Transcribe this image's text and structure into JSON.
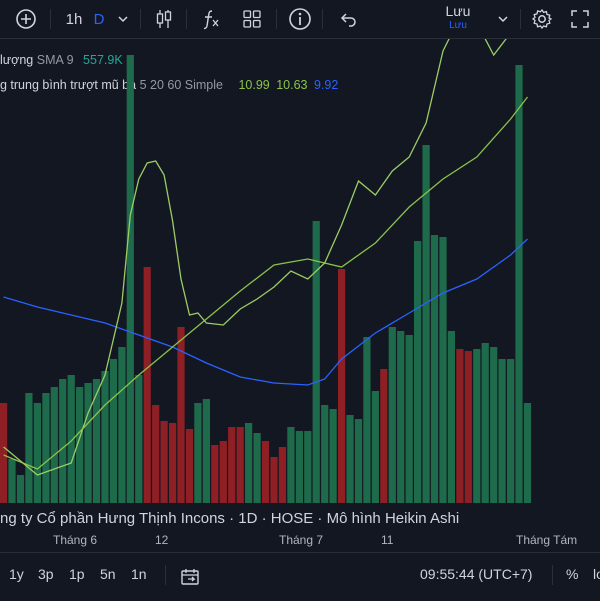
{
  "toolbar": {
    "interval": "1h",
    "interval_flag": "D",
    "save_label": "Lưu",
    "save_sublabel": "Lưu",
    "icons": [
      "plus-circle-icon",
      "chevron-down-icon",
      "candles-icon",
      "fx-icon",
      "layout-grid-icon",
      "info-icon",
      "undo-icon",
      "gear-icon",
      "fullscreen-icon"
    ]
  },
  "legend": {
    "volume": {
      "label": " lượng",
      "params": "SMA 9",
      "value": "557.9K",
      "value_color": "#26a69a"
    },
    "ema": {
      "label": "g trung bình trượt mũ ba",
      "params": "5 20 60 Simple",
      "v1": "10.99",
      "v1_color": "#8bc34a",
      "v2": "10.63",
      "v2_color": "#8bc34a",
      "v3": "9.92",
      "v3_color": "#2962ff"
    }
  },
  "symbol_title": "ng ty Cổ phần Hưng Thịnh Incons · 1D · HOSE · Mô hình Heikin Ashi",
  "time_axis": [
    "Tháng 6",
    "12",
    "Tháng 7",
    "11",
    "Tháng Tám"
  ],
  "bottom_bar": {
    "ranges": [
      "1y",
      "3p",
      "1p",
      "5n",
      "1n"
    ],
    "clock": "09:55:44 (UTC+7)",
    "percent": "%",
    "log": "lo"
  },
  "colors": {
    "up": "#1e6b4c",
    "down": "#8e1f25",
    "ema_fast": "#9ccc65",
    "ema_mid": "#8bc34a",
    "ema_slow": "#2962ff"
  },
  "chart_data": {
    "type": "bar",
    "volume_bars": [
      {
        "d": "down",
        "v": 0.5
      },
      {
        "d": "up",
        "v": 0.22
      },
      {
        "d": "up",
        "v": 0.14
      },
      {
        "d": "up",
        "v": 0.55
      },
      {
        "d": "up",
        "v": 0.5
      },
      {
        "d": "up",
        "v": 0.55
      },
      {
        "d": "up",
        "v": 0.58
      },
      {
        "d": "up",
        "v": 0.62
      },
      {
        "d": "up",
        "v": 0.64
      },
      {
        "d": "up",
        "v": 0.58
      },
      {
        "d": "up",
        "v": 0.6
      },
      {
        "d": "up",
        "v": 0.62
      },
      {
        "d": "up",
        "v": 0.66
      },
      {
        "d": "up",
        "v": 0.72
      },
      {
        "d": "up",
        "v": 0.78
      },
      {
        "d": "up",
        "v": 2.24
      },
      {
        "d": "up",
        "v": 0.64
      },
      {
        "d": "down",
        "v": 1.18
      },
      {
        "d": "down",
        "v": 0.49
      },
      {
        "d": "down",
        "v": 0.41
      },
      {
        "d": "down",
        "v": 0.4
      },
      {
        "d": "down",
        "v": 0.88
      },
      {
        "d": "down",
        "v": 0.37
      },
      {
        "d": "up",
        "v": 0.5
      },
      {
        "d": "up",
        "v": 0.52
      },
      {
        "d": "down",
        "v": 0.29
      },
      {
        "d": "down",
        "v": 0.31
      },
      {
        "d": "down",
        "v": 0.38
      },
      {
        "d": "down",
        "v": 0.38
      },
      {
        "d": "up",
        "v": 0.4
      },
      {
        "d": "up",
        "v": 0.35
      },
      {
        "d": "down",
        "v": 0.31
      },
      {
        "d": "down",
        "v": 0.23
      },
      {
        "d": "down",
        "v": 0.28
      },
      {
        "d": "up",
        "v": 0.38
      },
      {
        "d": "up",
        "v": 0.36
      },
      {
        "d": "up",
        "v": 0.36
      },
      {
        "d": "up",
        "v": 1.41
      },
      {
        "d": "up",
        "v": 0.49
      },
      {
        "d": "up",
        "v": 0.47
      },
      {
        "d": "down",
        "v": 1.17
      },
      {
        "d": "up",
        "v": 0.44
      },
      {
        "d": "up",
        "v": 0.42
      },
      {
        "d": "up",
        "v": 0.83
      },
      {
        "d": "up",
        "v": 0.56
      },
      {
        "d": "down",
        "v": 0.67
      },
      {
        "d": "up",
        "v": 0.88
      },
      {
        "d": "up",
        "v": 0.86
      },
      {
        "d": "up",
        "v": 0.84
      },
      {
        "d": "up",
        "v": 1.31
      },
      {
        "d": "up",
        "v": 1.79
      },
      {
        "d": "up",
        "v": 1.34
      },
      {
        "d": "up",
        "v": 1.33
      },
      {
        "d": "up",
        "v": 0.86
      },
      {
        "d": "down",
        "v": 0.77
      },
      {
        "d": "down",
        "v": 0.76
      },
      {
        "d": "up",
        "v": 0.77
      },
      {
        "d": "up",
        "v": 0.8
      },
      {
        "d": "up",
        "v": 0.78
      },
      {
        "d": "up",
        "v": 0.72
      },
      {
        "d": "up",
        "v": 0.72
      },
      {
        "d": "up",
        "v": 2.19
      },
      {
        "d": "up",
        "v": 0.5
      }
    ],
    "ema_fast": [
      [
        0,
        0.28
      ],
      [
        4,
        0.14
      ],
      [
        8,
        0.2
      ],
      [
        10,
        0.45
      ],
      [
        12,
        0.64
      ],
      [
        14,
        1.0
      ],
      [
        15,
        1.44
      ],
      [
        16,
        1.62
      ],
      [
        17,
        1.7
      ],
      [
        18,
        1.71
      ],
      [
        19,
        1.64
      ],
      [
        20,
        1.41
      ],
      [
        21,
        1.12
      ],
      [
        22,
        0.94
      ],
      [
        23,
        0.95
      ],
      [
        24,
        0.9
      ],
      [
        26,
        0.89
      ],
      [
        28,
        0.97
      ],
      [
        30,
        1.02
      ],
      [
        32,
        1.08
      ],
      [
        34,
        1.16
      ],
      [
        36,
        1.12
      ],
      [
        38,
        1.2
      ],
      [
        40,
        1.39
      ],
      [
        42,
        1.61
      ],
      [
        44,
        1.54
      ],
      [
        46,
        1.66
      ],
      [
        48,
        1.73
      ],
      [
        50,
        1.9
      ],
      [
        52,
        2.26
      ],
      [
        54,
        2.43
      ],
      [
        56,
        2.4
      ],
      [
        58,
        2.24
      ],
      [
        60,
        2.35
      ],
      [
        61,
        2.54
      ]
    ],
    "ema_mid": [
      [
        0,
        0.24
      ],
      [
        4,
        0.17
      ],
      [
        8,
        0.31
      ],
      [
        12,
        0.49
      ],
      [
        16,
        0.64
      ],
      [
        20,
        0.78
      ],
      [
        24,
        0.92
      ],
      [
        28,
        1.06
      ],
      [
        32,
        1.19
      ],
      [
        36,
        1.22
      ],
      [
        40,
        1.18
      ],
      [
        44,
        1.3
      ],
      [
        48,
        1.48
      ],
      [
        52,
        1.62
      ],
      [
        56,
        1.73
      ],
      [
        60,
        1.92
      ],
      [
        62,
        2.03
      ]
    ],
    "ema_slow": [
      [
        0,
        1.03
      ],
      [
        4,
        0.98
      ],
      [
        8,
        0.94
      ],
      [
        12,
        0.9
      ],
      [
        16,
        0.84
      ],
      [
        20,
        0.78
      ],
      [
        24,
        0.7
      ],
      [
        28,
        0.63
      ],
      [
        32,
        0.6
      ],
      [
        36,
        0.59
      ],
      [
        38,
        0.62
      ],
      [
        40,
        0.72
      ],
      [
        44,
        0.85
      ],
      [
        48,
        0.95
      ],
      [
        52,
        1.05
      ],
      [
        56,
        1.12
      ],
      [
        60,
        1.24
      ],
      [
        62,
        1.32
      ]
    ]
  }
}
